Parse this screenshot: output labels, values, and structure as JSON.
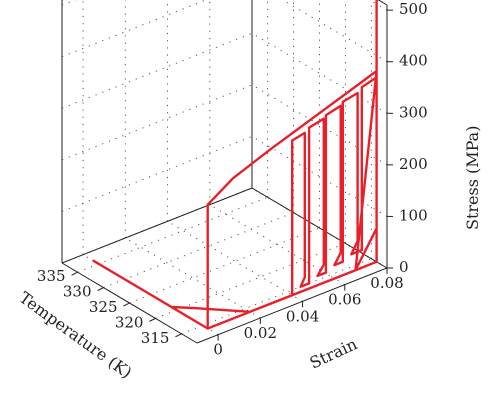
{
  "chart_data": {
    "type": "line3d",
    "title": "",
    "axes": {
      "x": {
        "label": "Strain",
        "ticks": [
          0,
          0.02,
          0.04,
          0.06,
          0.08
        ],
        "tick_labels": [
          "0",
          "0.02",
          "0.04",
          "0.06",
          "0.08"
        ],
        "range": [
          -0.01,
          0.08
        ]
      },
      "y": {
        "label": "Temperature (K)",
        "ticks": [
          315,
          320,
          325,
          330,
          335
        ],
        "tick_labels": [
          "315",
          "320",
          "325",
          "330",
          "335"
        ],
        "range": [
          312,
          338
        ]
      },
      "z": {
        "label": "Stress (MPa)",
        "ticks": [
          0,
          100,
          200,
          300,
          400,
          500
        ],
        "tick_labels": [
          "0",
          "100",
          "200",
          "300",
          "400",
          "500"
        ],
        "range": [
          0,
          510
        ]
      }
    },
    "grid": true,
    "series": [
      {
        "color": "#e8202a",
        "points": [
          {
            "strain": 0.0,
            "temperature": 336.0,
            "stress": 0
          },
          {
            "strain": 0.0,
            "temperature": 314.0,
            "stress": 0
          },
          {
            "strain": 0.0,
            "temperature": 314.0,
            "stress": 240
          },
          {
            "strain": 0.012,
            "temperature": 314.0,
            "stress": 272
          },
          {
            "strain": 0.03,
            "temperature": 314.0,
            "stress": 300
          },
          {
            "strain": 0.05,
            "temperature": 314.0,
            "stress": 328
          },
          {
            "strain": 0.07,
            "temperature": 314.0,
            "stress": 356
          },
          {
            "strain": 0.08,
            "temperature": 314.0,
            "stress": 370
          },
          {
            "strain": 0.07,
            "temperature": 314.0,
            "stress": 0
          },
          {
            "strain": 0.02,
            "temperature": 314.0,
            "stress": 0
          },
          {
            "strain": 0.006,
            "temperature": 319.0,
            "stress": 0
          },
          {
            "strain": 0.0,
            "temperature": 321.0,
            "stress": 0
          },
          {
            "strain": 0.0,
            "temperature": 314.0,
            "stress": 0
          },
          {
            "strain": 0.04,
            "temperature": 314.0,
            "stress": 0
          },
          {
            "strain": 0.04,
            "temperature": 314.0,
            "stress": 300
          },
          {
            "strain": 0.046,
            "temperature": 314.0,
            "stress": 305
          },
          {
            "strain": 0.046,
            "temperature": 314.0,
            "stress": 25
          },
          {
            "strain": 0.044,
            "temperature": 314.0,
            "stress": 10
          },
          {
            "strain": 0.048,
            "temperature": 314.0,
            "stress": 10
          },
          {
            "strain": 0.048,
            "temperature": 314.0,
            "stress": 312
          },
          {
            "strain": 0.055,
            "temperature": 314.0,
            "stress": 318
          },
          {
            "strain": 0.055,
            "temperature": 314.0,
            "stress": 35
          },
          {
            "strain": 0.052,
            "temperature": 314.0,
            "stress": 18
          },
          {
            "strain": 0.056,
            "temperature": 314.0,
            "stress": 18
          },
          {
            "strain": 0.056,
            "temperature": 314.0,
            "stress": 323
          },
          {
            "strain": 0.063,
            "temperature": 314.0,
            "stress": 330
          },
          {
            "strain": 0.063,
            "temperature": 314.0,
            "stress": 45
          },
          {
            "strain": 0.06,
            "temperature": 314.0,
            "stress": 26
          },
          {
            "strain": 0.064,
            "temperature": 314.0,
            "stress": 26
          },
          {
            "strain": 0.064,
            "temperature": 314.0,
            "stress": 336
          },
          {
            "strain": 0.071,
            "temperature": 314.0,
            "stress": 342
          },
          {
            "strain": 0.071,
            "temperature": 314.0,
            "stress": 55
          },
          {
            "strain": 0.068,
            "temperature": 314.0,
            "stress": 34
          },
          {
            "strain": 0.073,
            "temperature": 314.0,
            "stress": 34
          },
          {
            "strain": 0.073,
            "temperature": 314.0,
            "stress": 350
          },
          {
            "strain": 0.08,
            "temperature": 314.0,
            "stress": 358
          },
          {
            "strain": 0.08,
            "temperature": 314.0,
            "stress": 65
          },
          {
            "strain": 0.07,
            "temperature": 314.0,
            "stress": 0
          },
          {
            "strain": 0.08,
            "temperature": 314.0,
            "stress": 0
          },
          {
            "strain": 0.08,
            "temperature": 314.0,
            "stress": 510
          }
        ]
      }
    ]
  }
}
